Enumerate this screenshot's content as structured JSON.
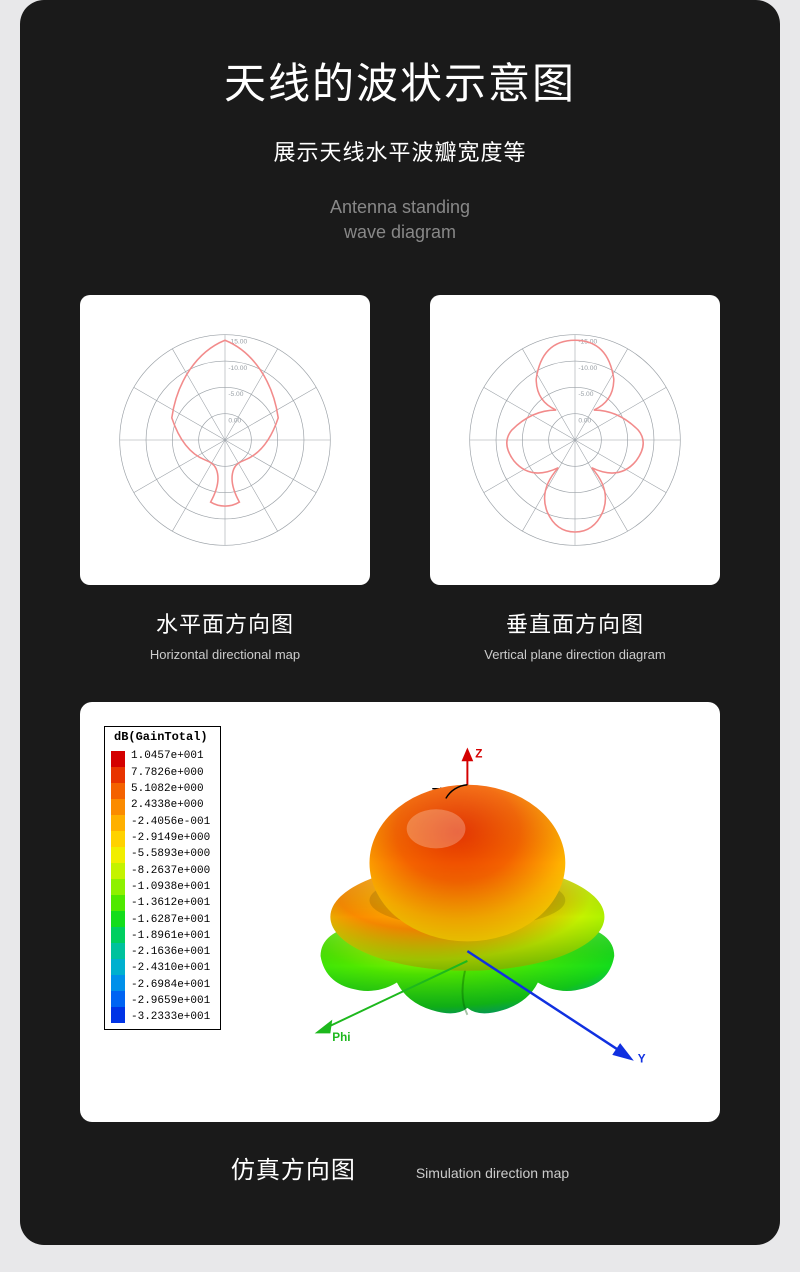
{
  "title": "天线的波状示意图",
  "subtitle_cn": "展示天线水平波瓣宽度等",
  "subtitle_en_line1": "Antenna standing",
  "subtitle_en_line2": "wave diagram",
  "polar": {
    "grid_color": "#9aa0a6",
    "curve_color": "#f28b8b",
    "label_color": "#9aa0a6",
    "rings": [
      0.25,
      0.5,
      0.75,
      1.0
    ],
    "ring_labels": [
      "0.00",
      "-5.00",
      "-10.00",
      "-15.00"
    ],
    "spoke_count": 12
  },
  "left_panel": {
    "title_cn": "水平面方向图",
    "title_en": "Horizontal directional map",
    "pattern_hint": "single forward main lobe with rear minor lobes"
  },
  "right_panel": {
    "title_cn": "垂直面方向图",
    "title_en": "Vertical plane direction diagram",
    "pattern_hint": "multi-lobed clover-like pattern"
  },
  "sim3d": {
    "legend_title": "dB(GainTotal)",
    "values": [
      "1.0457e+001",
      "7.7826e+000",
      "5.1082e+000",
      "2.4338e+000",
      "-2.4056e-001",
      "-2.9149e+000",
      "-5.5893e+000",
      "-8.2637e+000",
      "-1.0938e+001",
      "-1.3612e+001",
      "-1.6287e+001",
      "-1.8961e+001",
      "-2.1636e+001",
      "-2.4310e+001",
      "-2.6984e+001",
      "-2.9659e+001",
      "-3.2333e+001"
    ],
    "colormap": [
      "#d40000",
      "#e83400",
      "#f46200",
      "#fb8b00",
      "#ffb000",
      "#ffd200",
      "#f1ee00",
      "#c4f300",
      "#8ef100",
      "#4fe900",
      "#14dd1b",
      "#00cf60",
      "#00c29d",
      "#00b0cf",
      "#0090ea",
      "#0064f3",
      "#0033e6"
    ],
    "axis_labels": {
      "z": "Z",
      "y": "Y",
      "theta": "Theta",
      "phi": "Phi"
    },
    "axis_colors": {
      "z": "#d40000",
      "y": "#1030e0",
      "phi": "#1db81d",
      "theta": "#000000"
    },
    "title_cn": "仿真方向图",
    "title_en": "Simulation direction map"
  },
  "colors": {
    "card_bg": "#1a1a1a",
    "page_bg": "#e8e8ea",
    "text": "#ffffff",
    "muted": "#888888",
    "sub_en": "#cccccc"
  }
}
